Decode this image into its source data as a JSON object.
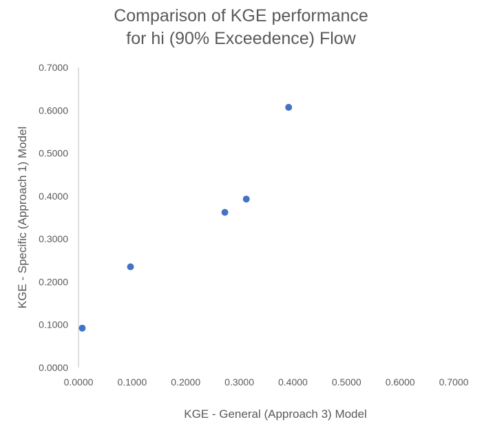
{
  "chart_data": {
    "type": "scatter",
    "title": [
      "Comparison of KGE performance",
      "for hi (90% Exceedence) Flow"
    ],
    "xlabel": "KGE - General (Approach 3) Model",
    "ylabel": "KGE - Specific (Approach 1)  Model",
    "xlim": [
      0,
      0.7
    ],
    "ylim": [
      0,
      0.7
    ],
    "x_ticks": [
      "0.0000",
      "0.1000",
      "0.2000",
      "0.3000",
      "0.4000",
      "0.5000",
      "0.6000",
      "0.7000"
    ],
    "y_ticks": [
      "0.0000",
      "0.1000",
      "0.2000",
      "0.3000",
      "0.4000",
      "0.5000",
      "0.6000",
      "0.7000"
    ],
    "grid": false,
    "legend": "none",
    "marker_color": "#4472C4",
    "points": [
      {
        "x": 0.007,
        "y": 0.092
      },
      {
        "x": 0.097,
        "y": 0.235
      },
      {
        "x": 0.273,
        "y": 0.362
      },
      {
        "x": 0.313,
        "y": 0.393
      },
      {
        "x": 0.392,
        "y": 0.607
      }
    ]
  }
}
